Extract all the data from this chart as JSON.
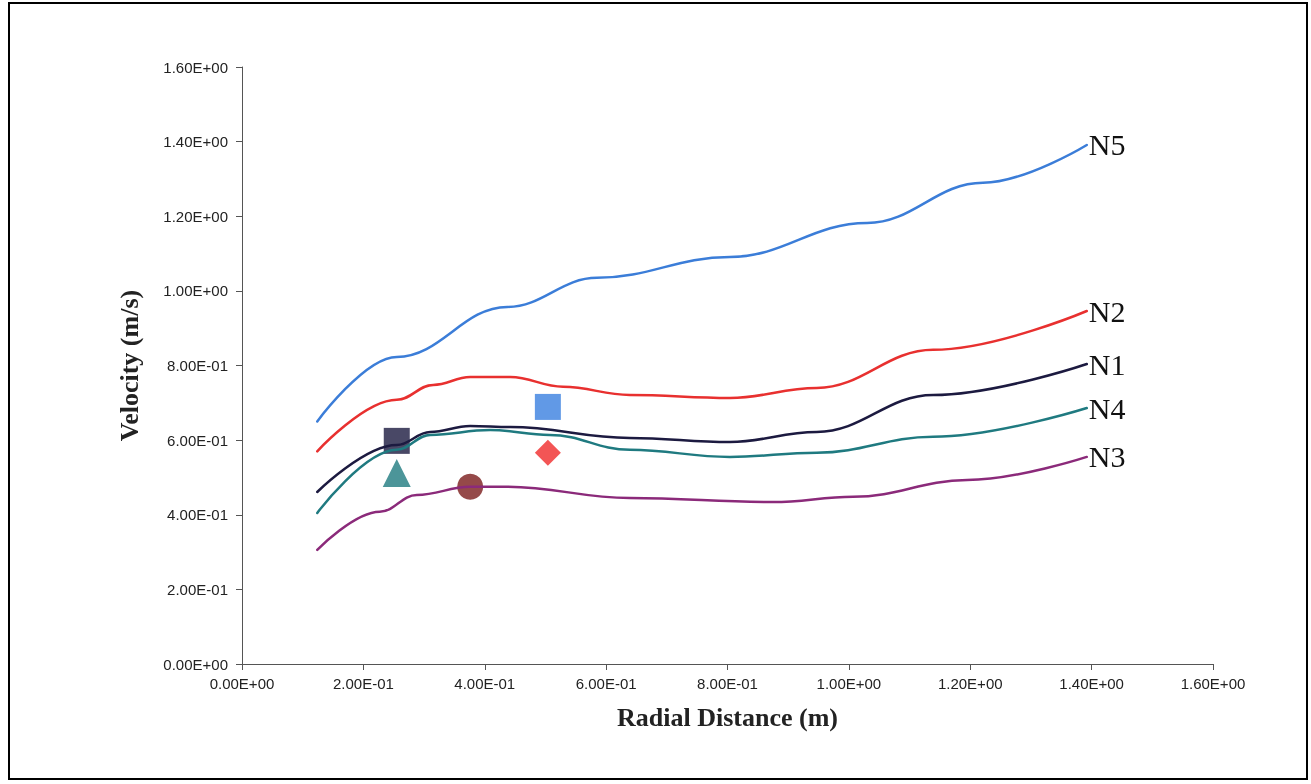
{
  "chart_data": {
    "type": "line",
    "xlabel": "Radial Distance (m)",
    "ylabel": "Velocity (m/s)",
    "xlim": [
      0,
      1.6
    ],
    "ylim": [
      0,
      1.6
    ],
    "xticks": [
      {
        "value": 0,
        "label": "0.00E+00"
      },
      {
        "value": 0.2,
        "label": "2.00E-01"
      },
      {
        "value": 0.4,
        "label": "4.00E-01"
      },
      {
        "value": 0.6,
        "label": "6.00E-01"
      },
      {
        "value": 0.8,
        "label": "8.00E-01"
      },
      {
        "value": 1.0,
        "label": "1.00E+00"
      },
      {
        "value": 1.2,
        "label": "1.20E+00"
      },
      {
        "value": 1.4,
        "label": "1.40E+00"
      },
      {
        "value": 1.6,
        "label": "1.60E+00"
      }
    ],
    "yticks": [
      {
        "value": 0,
        "label": "0.00E+00"
      },
      {
        "value": 0.2,
        "label": "2.00E-01"
      },
      {
        "value": 0.4,
        "label": "4.00E-01"
      },
      {
        "value": 0.6,
        "label": "6.00E-01"
      },
      {
        "value": 0.8,
        "label": "8.00E-01"
      },
      {
        "value": 1.0,
        "label": "1.00E+00"
      },
      {
        "value": 1.2,
        "label": "1.20E+00"
      },
      {
        "value": 1.4,
        "label": "1.40E+00"
      },
      {
        "value": 1.6,
        "label": "1.60E+00"
      }
    ],
    "grid": false,
    "legend": false,
    "marker": "none",
    "line_style": "solid",
    "series": [
      {
        "name": "N5",
        "color": "#3b7dd8",
        "x": [
          0.124,
          0.255,
          0.437,
          0.585,
          0.804,
          1.03,
          1.221,
          1.392
        ],
        "values": [
          0.65,
          0.823,
          0.957,
          1.035,
          1.091,
          1.182,
          1.29,
          1.391
        ]
      },
      {
        "name": "N2",
        "color": "#e8302f",
        "x": [
          0.124,
          0.255,
          0.315,
          0.376,
          0.442,
          0.529,
          0.639,
          0.804,
          0.947,
          1.139,
          1.392
        ],
        "values": [
          0.57,
          0.708,
          0.748,
          0.769,
          0.769,
          0.743,
          0.721,
          0.713,
          0.74,
          0.842,
          0.946
        ]
      },
      {
        "name": "N1",
        "color": "#1c1a40",
        "x": [
          0.124,
          0.255,
          0.31,
          0.376,
          0.442,
          0.639,
          0.804,
          0.947,
          1.139,
          1.392
        ],
        "values": [
          0.461,
          0.587,
          0.622,
          0.638,
          0.635,
          0.606,
          0.595,
          0.622,
          0.721,
          0.804
        ]
      },
      {
        "name": "N4",
        "color": "#1f7a80",
        "x": [
          0.124,
          0.255,
          0.31,
          0.409,
          0.507,
          0.639,
          0.804,
          0.947,
          1.139,
          1.392
        ],
        "values": [
          0.405,
          0.574,
          0.614,
          0.627,
          0.614,
          0.574,
          0.555,
          0.566,
          0.609,
          0.686
        ]
      },
      {
        "name": "N3",
        "color": "#8b2a7a",
        "x": [
          0.124,
          0.227,
          0.288,
          0.376,
          0.437,
          0.639,
          0.875,
          1.007,
          1.195,
          1.392
        ],
        "values": [
          0.306,
          0.408,
          0.453,
          0.475,
          0.475,
          0.445,
          0.434,
          0.448,
          0.493,
          0.555
        ]
      },
      {
        "type": "scatter",
        "marker": "square",
        "color": "#1c1a40",
        "x": [
          0.255
        ],
        "values": [
          0.598
        ]
      },
      {
        "type": "scatter",
        "marker": "triangle",
        "color": "#1f7a80",
        "x": [
          0.255
        ],
        "values": [
          0.512
        ]
      },
      {
        "type": "scatter",
        "marker": "circle",
        "color": "#7a1c1c",
        "x": [
          0.376
        ],
        "values": [
          0.475
        ]
      },
      {
        "type": "scatter",
        "marker": "square",
        "color": "#3a80e0",
        "x": [
          0.504
        ],
        "values": [
          0.689
        ]
      },
      {
        "type": "scatter",
        "marker": "diamond",
        "color": "#f02a2a",
        "x": [
          0.504
        ],
        "values": [
          0.566
        ]
      }
    ]
  }
}
